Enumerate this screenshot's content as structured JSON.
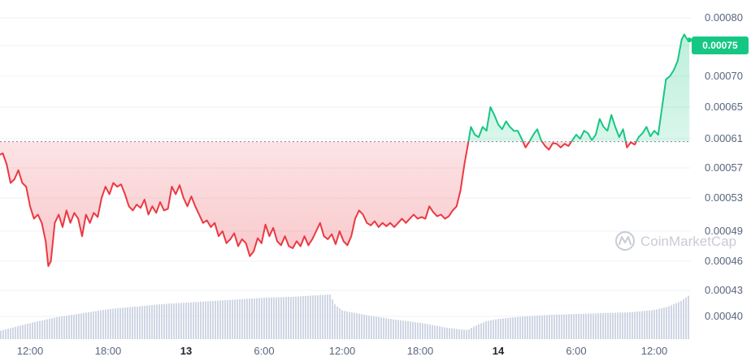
{
  "chart_data": {
    "type": "line",
    "reference_value": 0.000606,
    "current_value_label": "0.00075",
    "y_ticks": [
      {
        "value": 0.0008,
        "label": "0.00080"
      },
      {
        "value": 0.00075,
        "label": "0.00075"
      },
      {
        "value": 0.0007,
        "label": "0.00070"
      },
      {
        "value": 0.00065,
        "label": "0.00065"
      },
      {
        "value": 0.00061,
        "label": "0.00061"
      },
      {
        "value": 0.00057,
        "label": "0.00057"
      },
      {
        "value": 0.00053,
        "label": "0.00053"
      },
      {
        "value": 0.00049,
        "label": "0.00049"
      },
      {
        "value": 0.00046,
        "label": "0.00046"
      },
      {
        "value": 0.00043,
        "label": "0.00043"
      },
      {
        "value": 0.0004,
        "label": "0.00040"
      }
    ],
    "x_ticks": [
      {
        "hour": 12,
        "label": "12:00",
        "bold": false
      },
      {
        "hour": 18,
        "label": "18:00",
        "bold": false
      },
      {
        "hour": 24,
        "label": "13",
        "bold": true
      },
      {
        "hour": 30,
        "label": "6:00",
        "bold": false
      },
      {
        "hour": 36,
        "label": "12:00",
        "bold": false
      },
      {
        "hour": 42,
        "label": "18:00",
        "bold": false
      },
      {
        "hour": 48,
        "label": "14",
        "bold": true
      },
      {
        "hour": 54,
        "label": "6:00",
        "bold": false
      },
      {
        "hour": 60,
        "label": "12:00",
        "bold": false
      }
    ],
    "price": [
      [
        9.6,
        0.000588
      ],
      [
        9.9,
        0.00059
      ],
      [
        10.2,
        0.000575
      ],
      [
        10.5,
        0.00055
      ],
      [
        10.8,
        0.000555
      ],
      [
        11.1,
        0.000567
      ],
      [
        11.4,
        0.00055
      ],
      [
        11.7,
        0.000545
      ],
      [
        12.0,
        0.00052
      ],
      [
        12.3,
        0.000505
      ],
      [
        12.6,
        0.00051
      ],
      [
        12.9,
        0.0005
      ],
      [
        13.2,
        0.00048
      ],
      [
        13.4,
        0.000455
      ],
      [
        13.6,
        0.00046
      ],
      [
        13.9,
        0.0005
      ],
      [
        14.2,
        0.00051
      ],
      [
        14.5,
        0.000495
      ],
      [
        14.8,
        0.000515
      ],
      [
        15.1,
        0.0005
      ],
      [
        15.4,
        0.000512
      ],
      [
        15.7,
        0.000505
      ],
      [
        16.0,
        0.000485
      ],
      [
        16.3,
        0.00051
      ],
      [
        16.6,
        0.0005
      ],
      [
        16.9,
        0.000512
      ],
      [
        17.2,
        0.000507
      ],
      [
        17.5,
        0.00053
      ],
      [
        17.8,
        0.000545
      ],
      [
        18.1,
        0.000535
      ],
      [
        18.4,
        0.00055
      ],
      [
        18.7,
        0.000545
      ],
      [
        19.0,
        0.000548
      ],
      [
        19.3,
        0.000535
      ],
      [
        19.6,
        0.00052
      ],
      [
        19.9,
        0.000515
      ],
      [
        20.2,
        0.000522
      ],
      [
        20.5,
        0.000518
      ],
      [
        20.8,
        0.000528
      ],
      [
        21.1,
        0.00051
      ],
      [
        21.4,
        0.00052
      ],
      [
        21.7,
        0.000512
      ],
      [
        22.0,
        0.000525
      ],
      [
        22.3,
        0.000515
      ],
      [
        22.6,
        0.000517
      ],
      [
        22.9,
        0.000545
      ],
      [
        23.2,
        0.000535
      ],
      [
        23.5,
        0.000547
      ],
      [
        23.8,
        0.00053
      ],
      [
        24.1,
        0.00052
      ],
      [
        24.4,
        0.000532
      ],
      [
        24.7,
        0.00052
      ],
      [
        25.0,
        0.00051
      ],
      [
        25.3,
        0.0005
      ],
      [
        25.6,
        0.000503
      ],
      [
        25.9,
        0.000495
      ],
      [
        26.2,
        0.0005
      ],
      [
        26.5,
        0.000485
      ],
      [
        26.8,
        0.00049
      ],
      [
        27.1,
        0.000478
      ],
      [
        27.4,
        0.000482
      ],
      [
        27.7,
        0.000488
      ],
      [
        28.0,
        0.000475
      ],
      [
        28.3,
        0.000482
      ],
      [
        28.6,
        0.000478
      ],
      [
        28.9,
        0.000465
      ],
      [
        29.2,
        0.00047
      ],
      [
        29.5,
        0.000483
      ],
      [
        29.8,
        0.000478
      ],
      [
        30.1,
        0.000498
      ],
      [
        30.4,
        0.000485
      ],
      [
        30.7,
        0.000494
      ],
      [
        31.0,
        0.00048
      ],
      [
        31.3,
        0.000476
      ],
      [
        31.6,
        0.000485
      ],
      [
        31.9,
        0.000475
      ],
      [
        32.2,
        0.000473
      ],
      [
        32.5,
        0.00048
      ],
      [
        32.8,
        0.000475
      ],
      [
        33.1,
        0.000485
      ],
      [
        33.4,
        0.000476
      ],
      [
        33.7,
        0.000482
      ],
      [
        34.0,
        0.00049
      ],
      [
        34.3,
        0.0005
      ],
      [
        34.6,
        0.000485
      ],
      [
        34.9,
        0.000482
      ],
      [
        35.2,
        0.000487
      ],
      [
        35.5,
        0.000477
      ],
      [
        35.8,
        0.00049
      ],
      [
        36.1,
        0.00048
      ],
      [
        36.4,
        0.000476
      ],
      [
        36.7,
        0.000485
      ],
      [
        37.0,
        0.000505
      ],
      [
        37.3,
        0.000515
      ],
      [
        37.6,
        0.00051
      ],
      [
        37.9,
        0.0005
      ],
      [
        38.2,
        0.000497
      ],
      [
        38.5,
        0.000502
      ],
      [
        38.8,
        0.000495
      ],
      [
        39.1,
        0.0005
      ],
      [
        39.4,
        0.000496
      ],
      [
        39.7,
        0.0005
      ],
      [
        40.0,
        0.000495
      ],
      [
        40.3,
        0.0005
      ],
      [
        40.6,
        0.000505
      ],
      [
        40.9,
        0.0005
      ],
      [
        41.2,
        0.000505
      ],
      [
        41.5,
        0.00051
      ],
      [
        41.8,
        0.000505
      ],
      [
        42.1,
        0.000507
      ],
      [
        42.4,
        0.000505
      ],
      [
        42.7,
        0.00052
      ],
      [
        43.0,
        0.000513
      ],
      [
        43.3,
        0.000508
      ],
      [
        43.6,
        0.00051
      ],
      [
        43.9,
        0.000505
      ],
      [
        44.2,
        0.000508
      ],
      [
        44.5,
        0.000515
      ],
      [
        44.8,
        0.00052
      ],
      [
        45.1,
        0.00054
      ],
      [
        45.4,
        0.000575
      ],
      [
        45.7,
        0.000605
      ],
      [
        45.9,
        0.000625
      ],
      [
        46.2,
        0.000615
      ],
      [
        46.5,
        0.000612
      ],
      [
        46.8,
        0.000625
      ],
      [
        47.1,
        0.00062
      ],
      [
        47.4,
        0.00065
      ],
      [
        47.7,
        0.00064
      ],
      [
        48.0,
        0.000628
      ],
      [
        48.3,
        0.000622
      ],
      [
        48.6,
        0.000632
      ],
      [
        48.9,
        0.000625
      ],
      [
        49.2,
        0.00062
      ],
      [
        49.5,
        0.00062
      ],
      [
        49.8,
        0.00061
      ],
      [
        50.1,
        0.000598
      ],
      [
        50.4,
        0.000606
      ],
      [
        50.7,
        0.000615
      ],
      [
        51.0,
        0.000622
      ],
      [
        51.3,
        0.000608
      ],
      [
        51.6,
        0.0006
      ],
      [
        51.9,
        0.000595
      ],
      [
        52.2,
        0.000604
      ],
      [
        52.5,
        0.000603
      ],
      [
        52.8,
        0.000598
      ],
      [
        53.1,
        0.000603
      ],
      [
        53.4,
        0.0006
      ],
      [
        53.7,
        0.000608
      ],
      [
        54.0,
        0.000615
      ],
      [
        54.3,
        0.00061
      ],
      [
        54.6,
        0.00062
      ],
      [
        54.9,
        0.000617
      ],
      [
        55.2,
        0.000608
      ],
      [
        55.5,
        0.000615
      ],
      [
        55.8,
        0.000635
      ],
      [
        56.1,
        0.000625
      ],
      [
        56.4,
        0.00062
      ],
      [
        56.7,
        0.00064
      ],
      [
        57.0,
        0.000625
      ],
      [
        57.3,
        0.000612
      ],
      [
        57.6,
        0.000622
      ],
      [
        57.9,
        0.000598
      ],
      [
        58.2,
        0.000605
      ],
      [
        58.5,
        0.000602
      ],
      [
        58.8,
        0.000612
      ],
      [
        59.1,
        0.000617
      ],
      [
        59.4,
        0.000625
      ],
      [
        59.7,
        0.000613
      ],
      [
        60.0,
        0.00062
      ],
      [
        60.3,
        0.000615
      ],
      [
        60.6,
        0.00065
      ],
      [
        60.9,
        0.000695
      ],
      [
        61.2,
        0.0007
      ],
      [
        61.5,
        0.00071
      ],
      [
        61.8,
        0.000725
      ],
      [
        62.1,
        0.00076
      ],
      [
        62.3,
        0.00077
      ],
      [
        62.5,
        0.000762
      ],
      [
        62.7,
        0.00076
      ]
    ],
    "volume": [
      [
        9.6,
        0.1
      ],
      [
        12.0,
        0.2
      ],
      [
        14.0,
        0.27
      ],
      [
        16.0,
        0.32
      ],
      [
        18.0,
        0.37
      ],
      [
        20.0,
        0.4
      ],
      [
        22.0,
        0.43
      ],
      [
        24.0,
        0.45
      ],
      [
        26.0,
        0.47
      ],
      [
        28.0,
        0.49
      ],
      [
        30.0,
        0.51
      ],
      [
        32.0,
        0.52
      ],
      [
        34.0,
        0.54
      ],
      [
        35.0,
        0.55
      ],
      [
        35.4,
        0.42
      ],
      [
        36.0,
        0.35
      ],
      [
        38.0,
        0.29
      ],
      [
        40.0,
        0.24
      ],
      [
        42.0,
        0.2
      ],
      [
        43.0,
        0.17
      ],
      [
        44.0,
        0.14
      ],
      [
        45.0,
        0.12
      ],
      [
        45.6,
        0.11
      ],
      [
        46.0,
        0.15
      ],
      [
        47.0,
        0.22
      ],
      [
        48.0,
        0.25
      ],
      [
        50.0,
        0.28
      ],
      [
        52.0,
        0.3
      ],
      [
        54.0,
        0.31
      ],
      [
        56.0,
        0.32
      ],
      [
        58.0,
        0.33
      ],
      [
        60.0,
        0.36
      ],
      [
        61.0,
        0.4
      ],
      [
        62.0,
        0.47
      ],
      [
        62.7,
        0.55
      ]
    ],
    "colors": {
      "up": "#16c784",
      "down": "#ea3943",
      "grid": "#eff2f5",
      "axis_text": "#58667e",
      "volume": "#cfd6e4",
      "reference_line": "#7d8592"
    }
  },
  "watermark": {
    "text": "CoinMarketCap",
    "icon": "coinmarketcap-logo-icon"
  }
}
